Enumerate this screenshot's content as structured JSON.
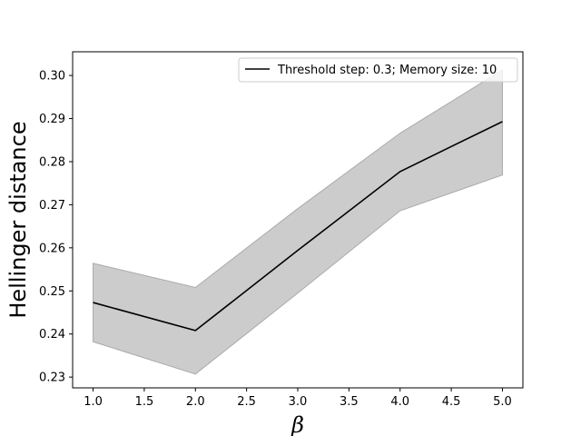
{
  "chart_data": {
    "type": "line",
    "title": "",
    "xlabel": "β",
    "ylabel": "Hellinger distance",
    "x": [
      1.0,
      2.0,
      3.0,
      4.0,
      5.0
    ],
    "xlim": [
      0.8,
      5.2
    ],
    "ylim": [
      0.2275,
      0.3055
    ],
    "xticks": [
      1.0,
      1.5,
      2.0,
      2.5,
      3.0,
      3.5,
      4.0,
      4.5,
      5.0
    ],
    "xtick_labels": [
      "1.0",
      "1.5",
      "2.0",
      "2.5",
      "3.0",
      "3.5",
      "4.0",
      "4.5",
      "5.0"
    ],
    "yticks": [
      0.23,
      0.24,
      0.25,
      0.26,
      0.27,
      0.28,
      0.29,
      0.3
    ],
    "ytick_labels": [
      "0.23",
      "0.24",
      "0.25",
      "0.26",
      "0.27",
      "0.28",
      "0.29",
      "0.30"
    ],
    "grid": false,
    "legend_position": "top-right",
    "series": [
      {
        "name": "Threshold step: 0.3; Memory size: 10",
        "values": [
          0.2473,
          0.2408,
          0.2594,
          0.2777,
          0.2893
        ],
        "lower": [
          0.2382,
          0.2307,
          0.2495,
          0.2686,
          0.2769
        ],
        "upper": [
          0.2564,
          0.2508,
          0.2691,
          0.2866,
          0.3013
        ],
        "color": "#000000",
        "band_color": "#cccccc",
        "band_edge_color": "#aaaaaa"
      }
    ]
  }
}
